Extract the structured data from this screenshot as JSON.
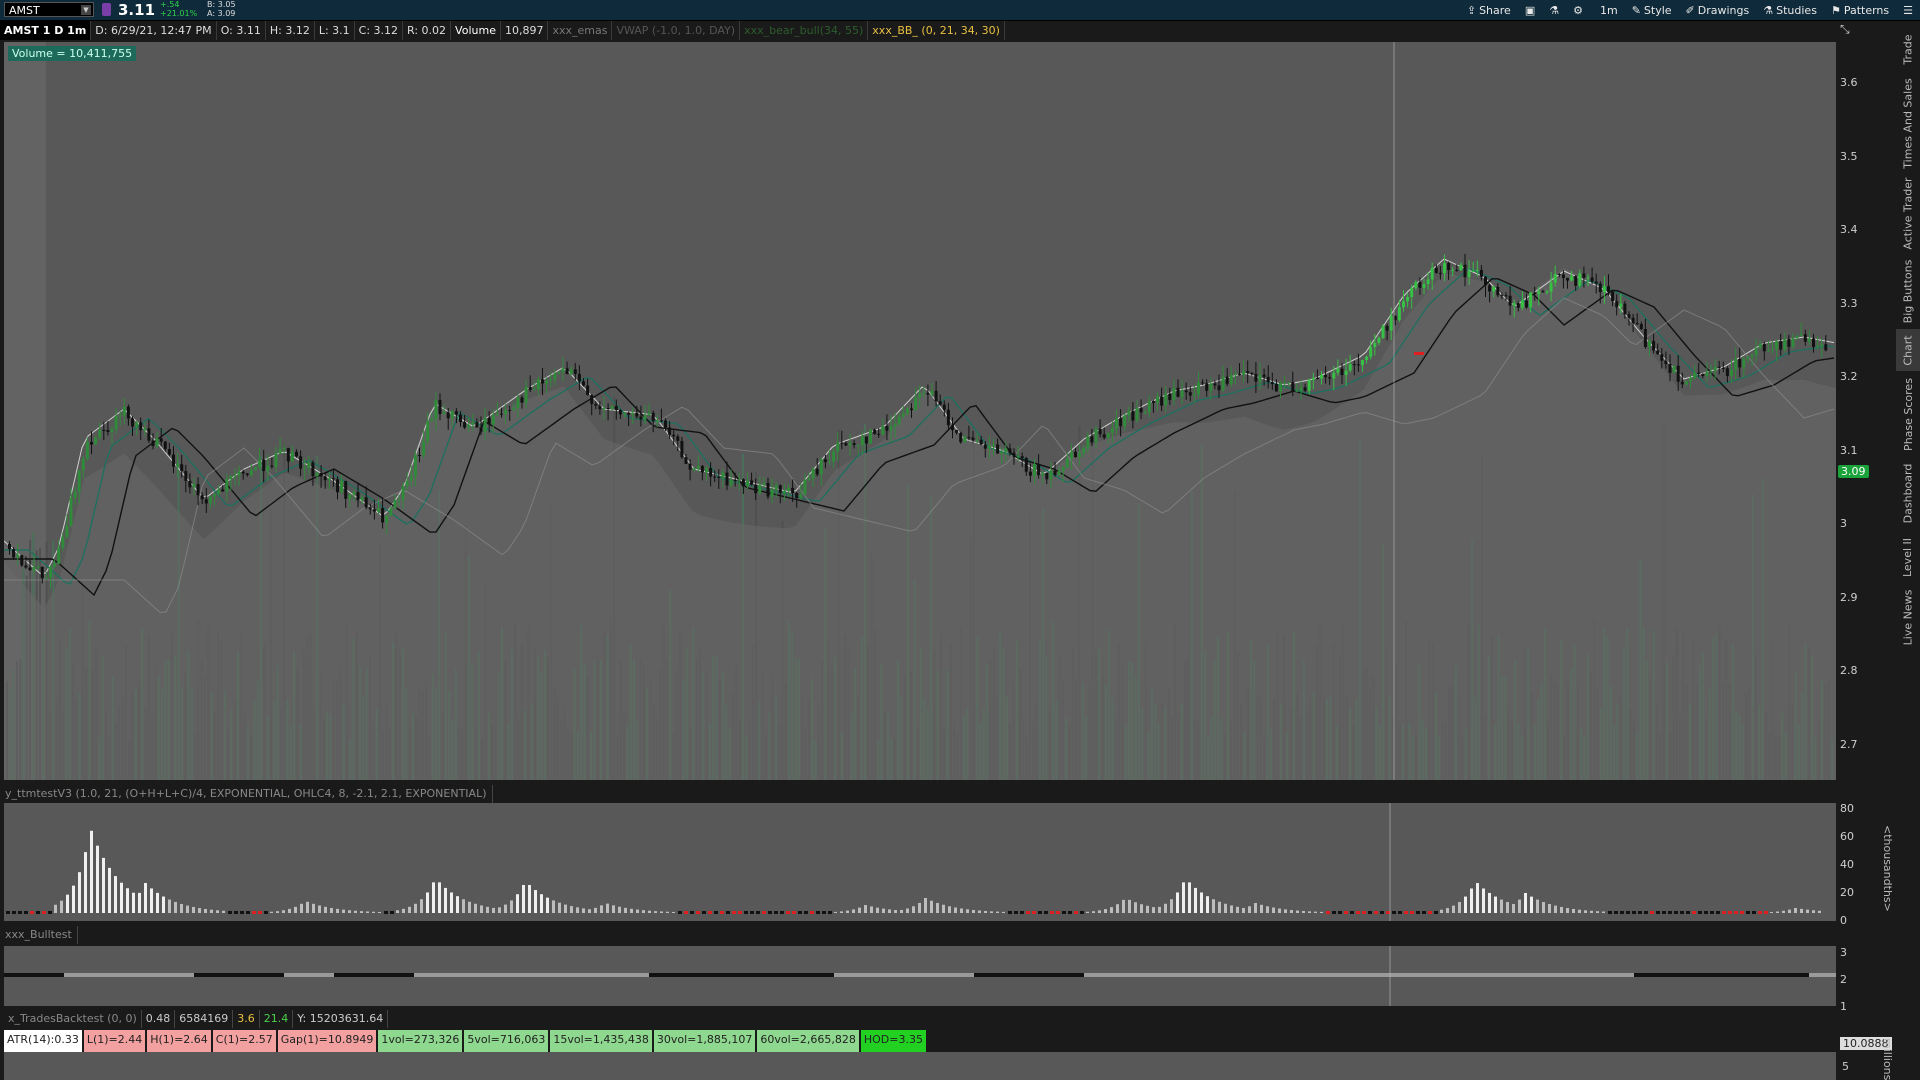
{
  "toolbar": {
    "symbol": "AMST",
    "last": "3.11",
    "change": "+.54",
    "change_pct": "+21.01%",
    "bid": "B: 3.05",
    "ask": "A: 3.09",
    "items": [
      {
        "icon": "share-icon",
        "label": "Share"
      },
      {
        "icon": "window-icon",
        "label": ""
      },
      {
        "icon": "flask-icon",
        "label": ""
      },
      {
        "icon": "gear-icon",
        "label": ""
      },
      {
        "icon": "timeframe-icon",
        "label": "1m"
      },
      {
        "icon": "style-icon",
        "label": "Style"
      },
      {
        "icon": "drawings-icon",
        "label": "Drawings"
      },
      {
        "icon": "studies-icon",
        "label": "Studies"
      },
      {
        "icon": "patterns-icon",
        "label": "Patterns"
      },
      {
        "icon": "menu-icon",
        "label": ""
      }
    ]
  },
  "header": {
    "chart_id": "AMST 1 D 1m",
    "date": "D: 6/29/21, 12:47 PM",
    "open": "O: 3.11",
    "high": "H: 3.12",
    "low": "L: 3.1",
    "close": "C: 3.12",
    "range": "R: 0.02",
    "volume_label": "Volume",
    "volume_val": "10,897",
    "study1": "xxx_emas",
    "study2": "VWAP (-1.0, 1.0, DAY)",
    "study3": "xxx_bear_bull(34, 55)",
    "study4": "xxx_BB_ (0, 21, 34, 30)"
  },
  "volume_badge": "Volume = 10,411,755",
  "price_axis": [
    "3.6",
    "3.5",
    "3.4",
    "3.3",
    "3.2",
    "3.1",
    "3",
    "2.9",
    "2.8",
    "2.7"
  ],
  "price_tag": "3.09",
  "panel2": {
    "title": "y_ttmtestV3 (1.0, 21, (O+H+L+C)/4, EXPONENTIAL, OHLC4, 8, -2.1, 2.1, EXPONENTIAL)",
    "axis": [
      "80",
      "60",
      "40",
      "20",
      "0"
    ],
    "unit": "<thousandths>"
  },
  "panel3": {
    "title": "xxx_Bulltest",
    "axis": [
      "3",
      "2",
      "1"
    ]
  },
  "panel4": {
    "name": "x_TradesBacktest (0, 0)",
    "v1": "0.48",
    "v2": "6584169",
    "v3": "3.6",
    "v4": "21.4",
    "v5": "Y: 15203631.64"
  },
  "stats": [
    {
      "text": "ATR(14):0.33",
      "bg": "#ffffff"
    },
    {
      "text": "L(1)=2.44",
      "bg": "#f2a0a0"
    },
    {
      "text": "H(1)=2.64",
      "bg": "#f2a0a0"
    },
    {
      "text": "C(1)=2.57",
      "bg": "#f2a0a0"
    },
    {
      "text": "Gap(1)=10.8949",
      "bg": "#f2a0a0"
    },
    {
      "text": "1vol=273,326",
      "bg": "#8fd88f"
    },
    {
      "text": "5vol=716,063",
      "bg": "#8fd88f"
    },
    {
      "text": "15vol=1,435,438",
      "bg": "#8fd88f"
    },
    {
      "text": "30vol=1,885,107",
      "bg": "#8fd88f"
    },
    {
      "text": "60vol=2,665,828",
      "bg": "#8fd88f"
    },
    {
      "text": "HOD=3.35",
      "bg": "#22d022"
    }
  ],
  "bottom": {
    "tag": "10.0888",
    "axis": "5",
    "unit": "millions"
  },
  "right_tabs": [
    "Trade",
    "Times And Sales",
    "Active Trader",
    "Big Buttons",
    "Chart",
    "Phase Scores",
    "Dashboard",
    "Level II",
    "Live News"
  ],
  "colors": {
    "up": "#2faa3f",
    "down": "#111111",
    "bg": "#585858",
    "accent": "#0f2a3a"
  }
}
